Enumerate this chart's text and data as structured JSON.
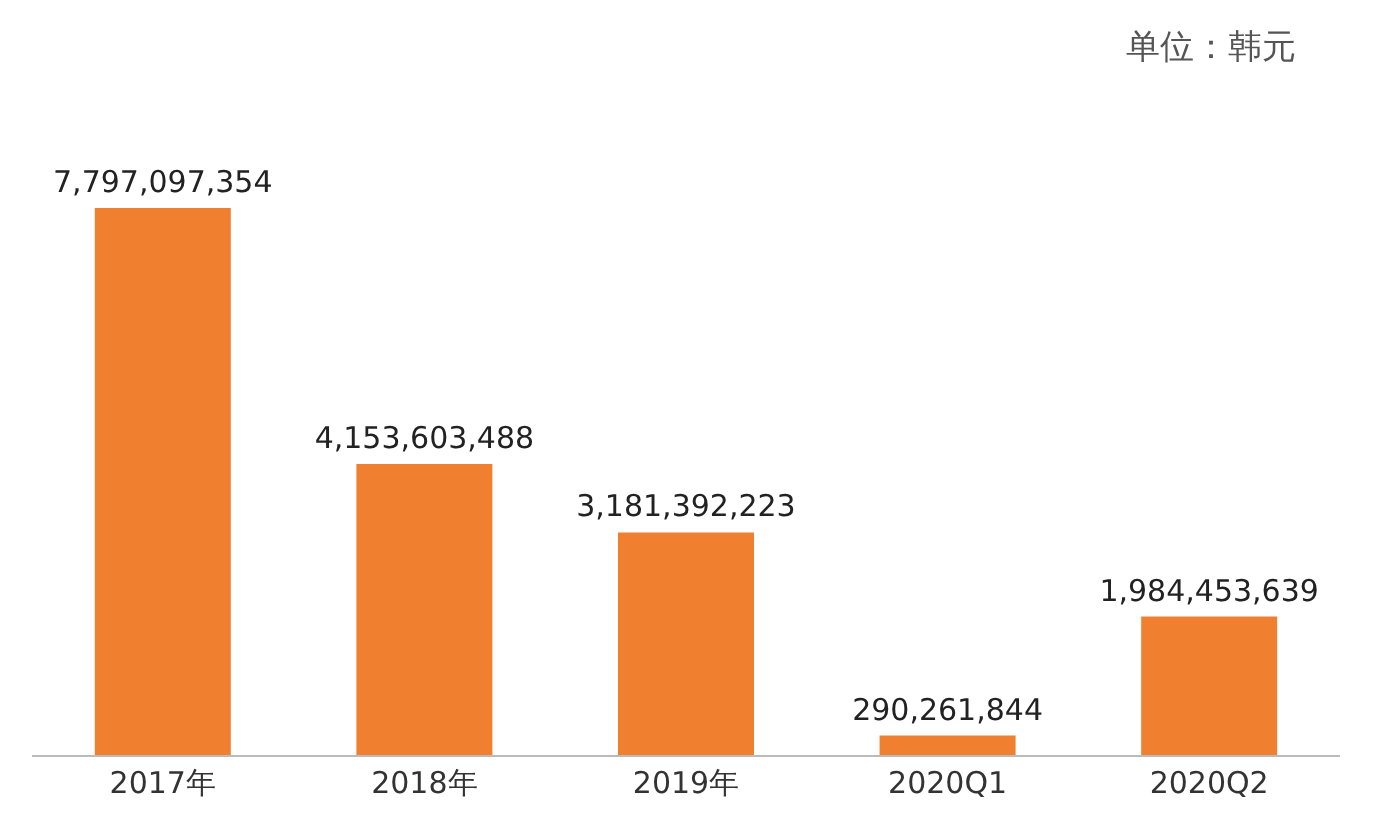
{
  "chart_data": {
    "type": "bar",
    "categories": [
      "2017年",
      "2018年",
      "2019年",
      "2020Q1",
      "2020Q2"
    ],
    "values": [
      7797097354,
      4153603488,
      3181392223,
      290261844,
      1984453639
    ],
    "value_labels": [
      "7,797,097,354",
      "4,153,603,488",
      "3,181,392,223",
      "290,261,844",
      "1,984,453,639"
    ],
    "color": "#f07f30",
    "annotations": [
      "单位：韩元"
    ]
  }
}
